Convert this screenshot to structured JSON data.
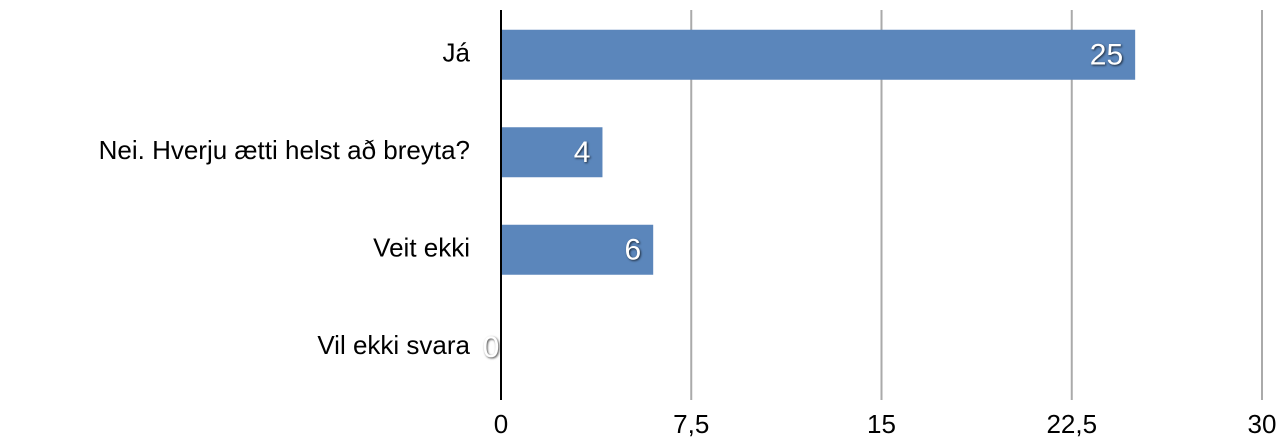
{
  "chart_data": {
    "type": "bar",
    "orientation": "horizontal",
    "categories": [
      "Já",
      "Nei. Hverju ætti helst að breyta?",
      "Veit ekki",
      "Vil ekki svara"
    ],
    "values": [
      25,
      4,
      6,
      0
    ],
    "color": "#5b86bb",
    "xlim": [
      0,
      30
    ],
    "xticks": [
      0,
      {
        "value": 7.5,
        "label": "7,5"
      },
      15,
      {
        "value": 22.5,
        "label": "22,5"
      },
      30
    ],
    "grid": true
  }
}
